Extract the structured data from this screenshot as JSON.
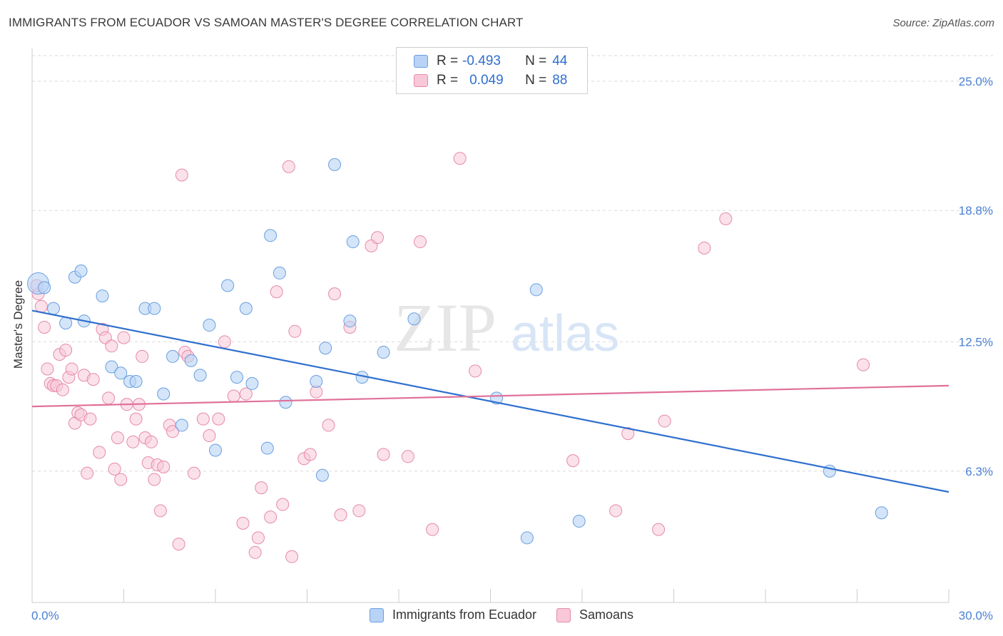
{
  "header": {
    "title": "IMMIGRANTS FROM ECUADOR VS SAMOAN MASTER'S DEGREE CORRELATION CHART",
    "source": "Source: ZipAtlas.com"
  },
  "legend": {
    "r_label": "R =",
    "n_label": "N =",
    "rows": [
      {
        "r": "-0.493",
        "n": "44",
        "fill": "#b8d3f5",
        "stroke": "#6a9ee0"
      },
      {
        "r": "0.049",
        "n": "88",
        "fill": "#f8c8d8",
        "stroke": "#e58aa8"
      }
    ]
  },
  "watermark": {
    "zip": "ZIP",
    "atlas": "atlas"
  },
  "colors": {
    "blue_fill": "#b8d3f5",
    "blue_stroke": "#6a9ee0",
    "blue_line": "#2f6fce",
    "pink_fill": "#f8c8d8",
    "pink_stroke": "#e58aa8",
    "pink_line": "#e0709a",
    "tick_label": "#4a80d4",
    "grid": "#d9d9d9"
  },
  "chart_data": {
    "type": "scatter",
    "title": "IMMIGRANTS FROM ECUADOR VS SAMOAN MASTER'S DEGREE CORRELATION CHART",
    "xlabel": "",
    "ylabel": "Master's Degree",
    "xlim": [
      0,
      30
    ],
    "ylim": [
      0,
      26.5
    ],
    "x_tick_labels": [
      "0.0%",
      "30.0%"
    ],
    "y_ticks": [
      6.3,
      12.5,
      18.8,
      25.0
    ],
    "y_tick_labels": [
      "6.3%",
      "12.5%",
      "18.8%",
      "25.0%"
    ],
    "grid": "horizontal dashed",
    "legend_position": "bottom",
    "series": [
      {
        "name": "Immigrants from Ecuador",
        "color": "#6a9ee0",
        "trend": {
          "x": [
            0,
            30
          ],
          "y": [
            14.0,
            5.3
          ]
        },
        "points": [
          [
            0.2,
            15.3
          ],
          [
            0.4,
            15.1
          ],
          [
            0.7,
            14.1
          ],
          [
            1.1,
            13.4
          ],
          [
            1.4,
            15.6
          ],
          [
            1.6,
            15.9
          ],
          [
            1.7,
            13.5
          ],
          [
            2.3,
            14.7
          ],
          [
            2.6,
            11.3
          ],
          [
            2.9,
            11.0
          ],
          [
            3.2,
            10.6
          ],
          [
            3.4,
            10.6
          ],
          [
            3.7,
            14.1
          ],
          [
            4.0,
            14.1
          ],
          [
            4.3,
            10.0
          ],
          [
            4.6,
            11.8
          ],
          [
            4.9,
            8.5
          ],
          [
            5.2,
            11.6
          ],
          [
            5.5,
            10.9
          ],
          [
            5.8,
            13.3
          ],
          [
            6.0,
            7.3
          ],
          [
            6.4,
            15.2
          ],
          [
            6.7,
            10.8
          ],
          [
            7.0,
            14.1
          ],
          [
            7.2,
            10.5
          ],
          [
            7.7,
            7.4
          ],
          [
            7.8,
            17.6
          ],
          [
            8.1,
            15.8
          ],
          [
            8.3,
            9.6
          ],
          [
            9.3,
            10.6
          ],
          [
            9.5,
            6.1
          ],
          [
            9.6,
            12.2
          ],
          [
            9.9,
            21.0
          ],
          [
            10.4,
            13.5
          ],
          [
            10.5,
            17.3
          ],
          [
            10.8,
            10.8
          ],
          [
            11.5,
            12.0
          ],
          [
            12.5,
            13.6
          ],
          [
            15.2,
            9.8
          ],
          [
            16.2,
            3.1
          ],
          [
            16.5,
            15.0
          ],
          [
            17.9,
            3.9
          ],
          [
            26.1,
            6.3
          ],
          [
            27.8,
            4.3
          ]
        ]
      },
      {
        "name": "Samoans",
        "color": "#e58aa8",
        "trend": {
          "x": [
            0,
            30
          ],
          "y": [
            9.4,
            10.4
          ]
        },
        "points": [
          [
            0.2,
            14.8
          ],
          [
            0.3,
            14.2
          ],
          [
            0.4,
            13.2
          ],
          [
            0.5,
            11.2
          ],
          [
            0.6,
            10.5
          ],
          [
            0.7,
            10.4
          ],
          [
            0.8,
            10.4
          ],
          [
            0.9,
            11.9
          ],
          [
            1.0,
            10.2
          ],
          [
            1.1,
            12.1
          ],
          [
            1.2,
            10.8
          ],
          [
            1.3,
            11.2
          ],
          [
            1.4,
            8.6
          ],
          [
            1.5,
            9.1
          ],
          [
            1.6,
            9.0
          ],
          [
            1.7,
            10.9
          ],
          [
            1.8,
            6.2
          ],
          [
            1.9,
            8.8
          ],
          [
            2.0,
            10.7
          ],
          [
            2.2,
            7.2
          ],
          [
            2.3,
            13.1
          ],
          [
            2.4,
            12.7
          ],
          [
            2.5,
            9.8
          ],
          [
            2.6,
            12.3
          ],
          [
            2.7,
            6.4
          ],
          [
            2.8,
            7.9
          ],
          [
            2.9,
            5.9
          ],
          [
            3.0,
            12.7
          ],
          [
            3.1,
            9.5
          ],
          [
            3.3,
            7.7
          ],
          [
            3.4,
            8.8
          ],
          [
            3.5,
            9.5
          ],
          [
            3.6,
            11.8
          ],
          [
            3.7,
            7.9
          ],
          [
            3.8,
            6.7
          ],
          [
            3.9,
            7.7
          ],
          [
            4.0,
            5.9
          ],
          [
            4.1,
            6.6
          ],
          [
            4.2,
            4.4
          ],
          [
            4.3,
            6.5
          ],
          [
            4.5,
            8.5
          ],
          [
            4.6,
            8.2
          ],
          [
            4.8,
            2.8
          ],
          [
            4.9,
            20.5
          ],
          [
            5.0,
            12.0
          ],
          [
            5.1,
            11.8
          ],
          [
            5.3,
            6.2
          ],
          [
            5.6,
            8.8
          ],
          [
            5.8,
            8.0
          ],
          [
            6.1,
            8.8
          ],
          [
            6.3,
            12.5
          ],
          [
            6.6,
            9.9
          ],
          [
            6.9,
            3.8
          ],
          [
            7.0,
            10.0
          ],
          [
            7.3,
            2.4
          ],
          [
            7.4,
            3.1
          ],
          [
            7.5,
            5.5
          ],
          [
            7.8,
            4.1
          ],
          [
            8.0,
            14.9
          ],
          [
            8.2,
            4.7
          ],
          [
            8.4,
            20.9
          ],
          [
            8.5,
            2.2
          ],
          [
            8.6,
            13.0
          ],
          [
            8.9,
            6.9
          ],
          [
            9.1,
            7.1
          ],
          [
            9.3,
            10.1
          ],
          [
            9.7,
            8.5
          ],
          [
            9.9,
            14.8
          ],
          [
            10.1,
            4.2
          ],
          [
            10.4,
            13.2
          ],
          [
            10.7,
            4.4
          ],
          [
            11.1,
            17.1
          ],
          [
            11.3,
            17.5
          ],
          [
            11.5,
            7.1
          ],
          [
            12.3,
            7.0
          ],
          [
            12.7,
            17.3
          ],
          [
            13.1,
            3.5
          ],
          [
            14.0,
            21.3
          ],
          [
            14.5,
            11.1
          ],
          [
            17.7,
            6.8
          ],
          [
            19.1,
            4.4
          ],
          [
            19.5,
            8.1
          ],
          [
            20.5,
            3.5
          ],
          [
            20.7,
            8.7
          ],
          [
            22.0,
            17.0
          ],
          [
            22.7,
            18.4
          ],
          [
            27.2,
            11.4
          ],
          [
            0.15,
            15.2
          ]
        ]
      }
    ]
  },
  "bottom_legend": [
    {
      "label": "Immigrants from Ecuador"
    },
    {
      "label": "Samoans"
    }
  ]
}
